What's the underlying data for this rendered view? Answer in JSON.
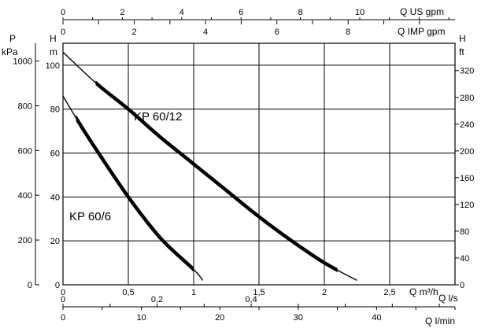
{
  "chart_data": {
    "type": "line",
    "title": "",
    "x": {
      "label": "Q m³/h",
      "range": [
        0,
        3.0
      ],
      "ticks": [
        0,
        0.5,
        1,
        1.5,
        2,
        2.5
      ],
      "tick_labels": [
        "0",
        "0,5",
        "1",
        "1,5",
        "2",
        "2,5"
      ]
    },
    "y_head_m": {
      "label": "H",
      "unit": "m",
      "range": [
        0,
        110
      ],
      "ticks": [
        0,
        20,
        40,
        60,
        80,
        100
      ],
      "tick_labels": [
        "0",
        "20",
        "40",
        "60",
        "80",
        "100"
      ]
    },
    "y_pressure_kpa": {
      "label": "P",
      "unit": "kPa",
      "ticks": [
        0,
        200,
        400,
        600,
        800,
        1000
      ],
      "tick_labels": [
        "0",
        "200",
        "400",
        "600",
        "800",
        "1000"
      ]
    },
    "y_head_ft": {
      "label": "H",
      "unit": "ft",
      "ticks": [
        0,
        40,
        80,
        120,
        160,
        200,
        240,
        280,
        320
      ],
      "tick_labels": [
        "0",
        "40",
        "80",
        "120",
        "160",
        "200",
        "240",
        "280",
        "320"
      ]
    },
    "x_us_gpm": {
      "label": "Q US gpm",
      "ticks": [
        0,
        2,
        4,
        6,
        8,
        10
      ],
      "tick_labels": [
        "0",
        "2",
        "4",
        "6",
        "8",
        "10"
      ]
    },
    "x_imp_gpm": {
      "label": "Q IMP gpm",
      "ticks": [
        0,
        2,
        4,
        6,
        8
      ],
      "tick_labels": [
        "0",
        "2",
        "4",
        "6",
        "8"
      ]
    },
    "x_l_s": {
      "label": "Q l/s",
      "ticks": [
        0,
        0.2,
        0.4
      ],
      "tick_labels": [
        "0",
        "0,2",
        "0,4"
      ]
    },
    "x_l_min": {
      "label": "Q l/min",
      "ticks": [
        0,
        10,
        20,
        30,
        40
      ],
      "tick_labels": [
        "0",
        "10",
        "20",
        "30",
        "40"
      ]
    },
    "grid": true,
    "series": [
      {
        "name": "KP 60/12",
        "x": [
          0,
          0.25,
          0.5,
          0.75,
          1.0,
          1.25,
          1.5,
          1.75,
          2.0,
          2.25
        ],
        "y": [
          106,
          92,
          80,
          67,
          55,
          43,
          31,
          20,
          10,
          2
        ],
        "bold_range": [
          0.25,
          2.1
        ]
      },
      {
        "name": "KP 60/6",
        "x": [
          0,
          0.1,
          0.25,
          0.5,
          0.75,
          1.0,
          1.07
        ],
        "y": [
          86,
          76,
          62,
          40,
          21,
          7,
          2
        ],
        "bold_range": [
          0.1,
          1.0
        ]
      }
    ]
  }
}
